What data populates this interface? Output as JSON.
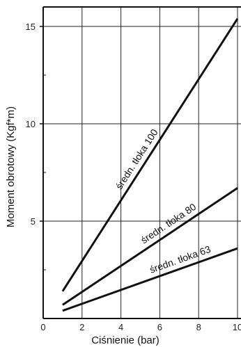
{
  "chart_data": {
    "type": "line",
    "title": "",
    "xlabel": "Ciśnienie (bar)",
    "ylabel": "Moment obrotowy (Kgf*m)",
    "xlim": [
      0,
      10
    ],
    "ylim": [
      0,
      16
    ],
    "x_ticks": [
      0,
      2,
      4,
      6,
      8,
      10
    ],
    "x_tick_labels": [
      "0",
      "2",
      "4",
      "6",
      "8",
      "10"
    ],
    "y_ticks": [
      5,
      10,
      15
    ],
    "y_tick_labels": [
      "5",
      "10",
      "15"
    ],
    "grid": true,
    "series": [
      {
        "name": "średn. tłoka 100",
        "x": [
          1,
          10
        ],
        "y": [
          1.4,
          15.4
        ]
      },
      {
        "name": "średn. tłoka 80",
        "x": [
          1,
          10
        ],
        "y": [
          0.7,
          6.7
        ]
      },
      {
        "name": "średn. tłoka 63",
        "x": [
          1,
          10
        ],
        "y": [
          0.4,
          3.6
        ]
      }
    ]
  }
}
